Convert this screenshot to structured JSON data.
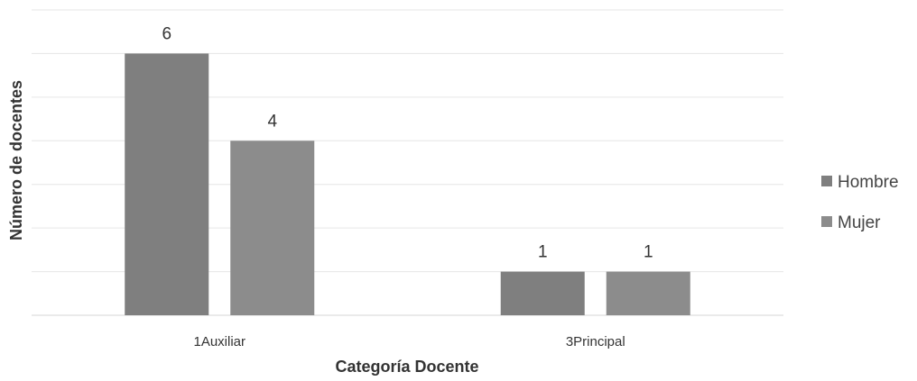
{
  "chart_data": {
    "type": "bar",
    "categories": [
      "1Auxiliar",
      "3Principal"
    ],
    "series": [
      {
        "name": "Hombre",
        "values": [
          6,
          1
        ],
        "color": "#7f7f7f"
      },
      {
        "name": "Mujer",
        "values": [
          4,
          1
        ],
        "color": "#8c8c8c"
      }
    ],
    "xlabel": "Categoría Docente",
    "ylabel": "Número de docentes",
    "ylim": [
      0,
      7
    ],
    "grid": true,
    "legend": "right",
    "data_labels": true
  }
}
